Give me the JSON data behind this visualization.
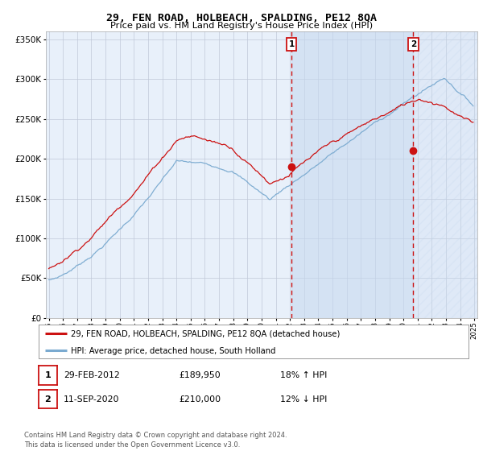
{
  "title": "29, FEN ROAD, HOLBEACH, SPALDING, PE12 8QA",
  "subtitle": "Price paid vs. HM Land Registry's House Price Index (HPI)",
  "red_label": "29, FEN ROAD, HOLBEACH, SPALDING, PE12 8QA (detached house)",
  "blue_label": "HPI: Average price, detached house, South Holland",
  "sale1_date": "29-FEB-2012",
  "sale1_price": 189950,
  "sale1_hpi": "18% ↑ HPI",
  "sale2_date": "11-SEP-2020",
  "sale2_price": 210000,
  "sale2_hpi": "12% ↓ HPI",
  "footer": "Contains HM Land Registry data © Crown copyright and database right 2024.\nThis data is licensed under the Open Government Licence v3.0.",
  "ylim": [
    0,
    360000
  ],
  "start_year": 1995,
  "end_year": 2025,
  "background_color": "#ffffff",
  "plot_bg_color": "#e8f0fa",
  "grid_color": "#c0c8d8",
  "red_color": "#cc1111",
  "blue_color": "#7aaad0",
  "sale1_year": 2012.12,
  "sale2_year": 2020.7
}
